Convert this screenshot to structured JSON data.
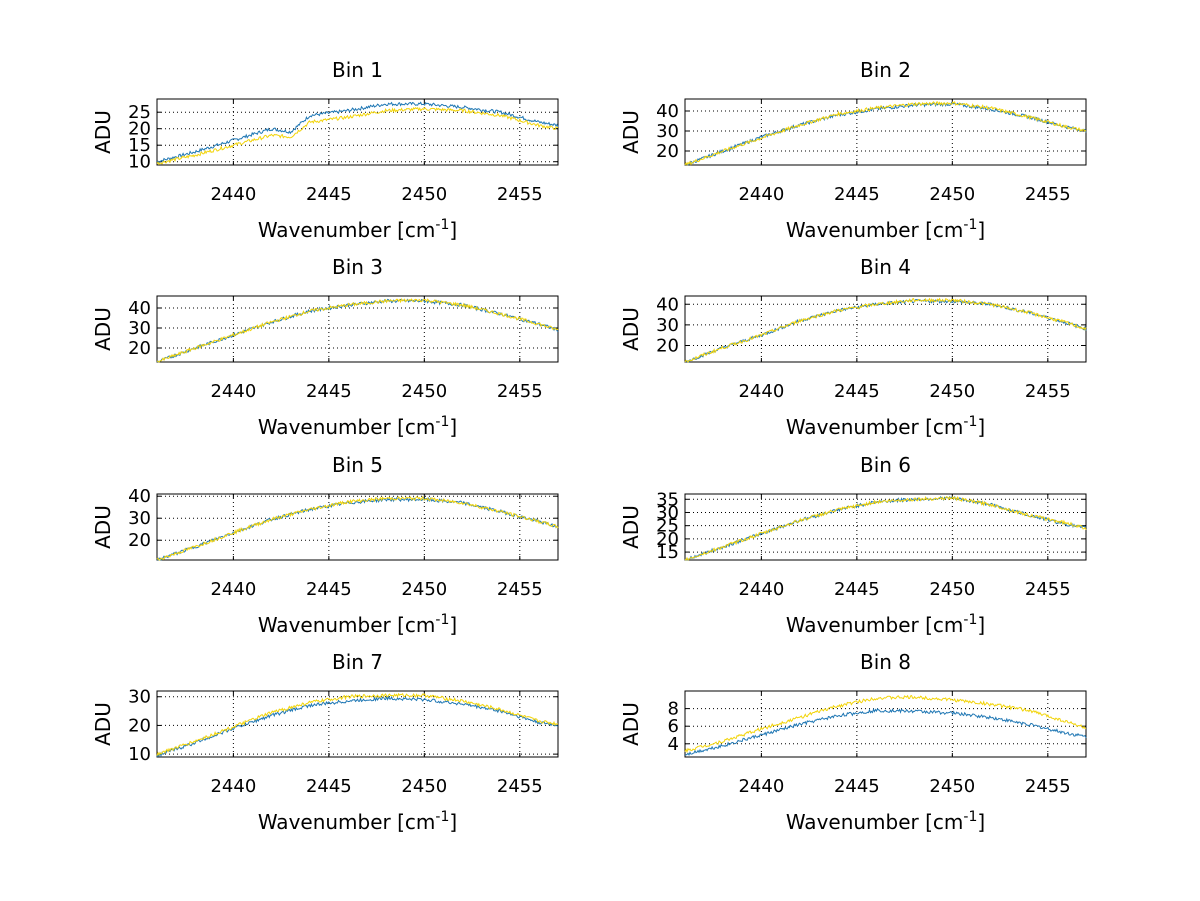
{
  "colors": {
    "series_blue": "#1f77b4",
    "series_yellow": "#f2d40a"
  },
  "chart_data": [
    {
      "type": "line",
      "title": "Bin 1",
      "xlabel": "Wavenumber [cm",
      "xlabel_sup": "-1",
      "xlabel_end": "]",
      "ylabel": "ADU",
      "xlim": [
        2436,
        2457
      ],
      "ylim": [
        9,
        29
      ],
      "xticks": [
        "2440",
        "2445",
        "2450",
        "2455"
      ],
      "yticks": [
        "10",
        "15",
        "20",
        "25"
      ],
      "grid": true,
      "series": [
        {
          "color": "blue",
          "x": [
            2436,
            2438,
            2440,
            2442,
            2443,
            2444,
            2446,
            2448,
            2450,
            2452,
            2454,
            2456,
            2457
          ],
          "y": [
            10,
            13,
            16.5,
            20,
            19,
            24,
            25.5,
            27.5,
            27.5,
            26.5,
            25,
            22,
            21
          ]
        },
        {
          "color": "yellow",
          "x": [
            2436,
            2438,
            2440,
            2442,
            2443,
            2444,
            2446,
            2448,
            2450,
            2452,
            2454,
            2456,
            2457
          ],
          "y": [
            9.5,
            12,
            15,
            18,
            17.5,
            22,
            23.5,
            25.5,
            26,
            25.5,
            24,
            21,
            20
          ]
        }
      ]
    },
    {
      "type": "line",
      "title": "Bin 2",
      "xlabel": "Wavenumber [cm",
      "xlabel_sup": "-1",
      "xlabel_end": "]",
      "ylabel": "ADU",
      "xlim": [
        2436,
        2457
      ],
      "ylim": [
        13,
        46
      ],
      "xticks": [
        "2440",
        "2445",
        "2450",
        "2455"
      ],
      "yticks": [
        "20",
        "30",
        "40"
      ],
      "grid": true,
      "series": [
        {
          "color": "blue",
          "x": [
            2436,
            2438,
            2440,
            2442,
            2444,
            2446,
            2448,
            2450,
            2452,
            2454,
            2456,
            2457
          ],
          "y": [
            13,
            20,
            27,
            33,
            38,
            41,
            43,
            43.5,
            41,
            37,
            32,
            30
          ]
        },
        {
          "color": "yellow",
          "x": [
            2436,
            2438,
            2440,
            2442,
            2444,
            2446,
            2448,
            2450,
            2452,
            2454,
            2456,
            2457
          ],
          "y": [
            13,
            20,
            26.5,
            33,
            38.5,
            41.5,
            43.5,
            44,
            41.5,
            37,
            32,
            30
          ]
        }
      ]
    },
    {
      "type": "line",
      "title": "Bin 3",
      "xlabel": "Wavenumber [cm",
      "xlabel_sup": "-1",
      "xlabel_end": "]",
      "ylabel": "ADU",
      "xlim": [
        2436,
        2457
      ],
      "ylim": [
        13,
        46
      ],
      "xticks": [
        "2440",
        "2445",
        "2450",
        "2455"
      ],
      "yticks": [
        "20",
        "30",
        "40"
      ],
      "grid": true,
      "series": [
        {
          "color": "blue",
          "x": [
            2436,
            2438,
            2440,
            2442,
            2444,
            2446,
            2448,
            2450,
            2452,
            2454,
            2456,
            2457
          ],
          "y": [
            13,
            20,
            26.5,
            33,
            38.5,
            41.5,
            43.5,
            43.5,
            41.5,
            37,
            32,
            29
          ]
        },
        {
          "color": "yellow",
          "x": [
            2436,
            2438,
            2440,
            2442,
            2444,
            2446,
            2448,
            2450,
            2452,
            2454,
            2456,
            2457
          ],
          "y": [
            13,
            20,
            26.5,
            33,
            38.5,
            41.5,
            43.5,
            44,
            41.5,
            37,
            32,
            29
          ]
        }
      ]
    },
    {
      "type": "line",
      "title": "Bin 4",
      "xlabel": "Wavenumber [cm",
      "xlabel_sup": "-1",
      "xlabel_end": "]",
      "ylabel": "ADU",
      "xlim": [
        2436,
        2457
      ],
      "ylim": [
        12,
        44
      ],
      "xticks": [
        "2440",
        "2445",
        "2450",
        "2455"
      ],
      "yticks": [
        "20",
        "30",
        "40"
      ],
      "grid": true,
      "series": [
        {
          "color": "blue",
          "x": [
            2436,
            2438,
            2440,
            2442,
            2444,
            2446,
            2448,
            2450,
            2452,
            2454,
            2456,
            2457
          ],
          "y": [
            12,
            19,
            25,
            32,
            37,
            40,
            41.5,
            41.5,
            40,
            36,
            31,
            28
          ]
        },
        {
          "color": "yellow",
          "x": [
            2436,
            2438,
            2440,
            2442,
            2444,
            2446,
            2448,
            2450,
            2452,
            2454,
            2456,
            2457
          ],
          "y": [
            12,
            19,
            25,
            32,
            37,
            40,
            42,
            42,
            40,
            36,
            31,
            28
          ]
        }
      ]
    },
    {
      "type": "line",
      "title": "Bin 5",
      "xlabel": "Wavenumber [cm",
      "xlabel_sup": "-1",
      "xlabel_end": "]",
      "ylabel": "ADU",
      "xlim": [
        2436,
        2457
      ],
      "ylim": [
        11,
        41
      ],
      "xticks": [
        "2440",
        "2445",
        "2450",
        "2455"
      ],
      "yticks": [
        "20",
        "30",
        "40"
      ],
      "grid": true,
      "series": [
        {
          "color": "blue",
          "x": [
            2436,
            2438,
            2440,
            2442,
            2444,
            2446,
            2448,
            2450,
            2452,
            2454,
            2456,
            2457
          ],
          "y": [
            11,
            17,
            23.5,
            29.5,
            34,
            37,
            38.5,
            38.5,
            37,
            33,
            28.5,
            26
          ]
        },
        {
          "color": "yellow",
          "x": [
            2436,
            2438,
            2440,
            2442,
            2444,
            2446,
            2448,
            2450,
            2452,
            2454,
            2456,
            2457
          ],
          "y": [
            11,
            17,
            23.5,
            29.5,
            34,
            37.5,
            39,
            39,
            37,
            33,
            28.5,
            26
          ]
        }
      ]
    },
    {
      "type": "line",
      "title": "Bin 6",
      "xlabel": "Wavenumber [cm",
      "xlabel_sup": "-1",
      "xlabel_end": "]",
      "ylabel": "ADU",
      "xlim": [
        2436,
        2457
      ],
      "ylim": [
        12,
        37
      ],
      "xticks": [
        "2440",
        "2445",
        "2450",
        "2455"
      ],
      "yticks": [
        "15",
        "20",
        "25",
        "30",
        "35"
      ],
      "grid": true,
      "series": [
        {
          "color": "blue",
          "x": [
            2436,
            2438,
            2440,
            2442,
            2444,
            2446,
            2448,
            2450,
            2452,
            2454,
            2456,
            2457
          ],
          "y": [
            12,
            17,
            22,
            27,
            31,
            34,
            35,
            35.5,
            33,
            29,
            25.5,
            24
          ]
        },
        {
          "color": "yellow",
          "x": [
            2436,
            2438,
            2440,
            2442,
            2444,
            2446,
            2448,
            2450,
            2452,
            2454,
            2456,
            2457
          ],
          "y": [
            12,
            17,
            22,
            27,
            31,
            34,
            35,
            35.5,
            33,
            29,
            26,
            24
          ]
        }
      ]
    },
    {
      "type": "line",
      "title": "Bin 7",
      "xlabel": "Wavenumber [cm",
      "xlabel_sup": "-1",
      "xlabel_end": "]",
      "ylabel": "ADU",
      "xlim": [
        2436,
        2457
      ],
      "ylim": [
        9,
        32
      ],
      "xticks": [
        "2440",
        "2445",
        "2450",
        "2455"
      ],
      "yticks": [
        "10",
        "20",
        "30"
      ],
      "grid": true,
      "series": [
        {
          "color": "blue",
          "x": [
            2436,
            2438,
            2440,
            2442,
            2444,
            2446,
            2448,
            2450,
            2452,
            2454,
            2456,
            2457
          ],
          "y": [
            9.5,
            14,
            19,
            23.5,
            27,
            28.5,
            29.5,
            29,
            27.5,
            25,
            21,
            20
          ]
        },
        {
          "color": "yellow",
          "x": [
            2436,
            2438,
            2440,
            2442,
            2444,
            2446,
            2448,
            2450,
            2452,
            2454,
            2456,
            2457
          ],
          "y": [
            10,
            14.5,
            19.5,
            24.5,
            28,
            30,
            30.5,
            30.5,
            28.5,
            25.5,
            21.5,
            20.5
          ]
        }
      ]
    },
    {
      "type": "line",
      "title": "Bin 8",
      "xlabel": "Wavenumber [cm",
      "xlabel_sup": "-1",
      "xlabel_end": "]",
      "ylabel": "ADU",
      "xlim": [
        2436,
        2457
      ],
      "ylim": [
        2.5,
        10
      ],
      "xticks": [
        "2440",
        "2445",
        "2450",
        "2455"
      ],
      "yticks": [
        "4",
        "6",
        "8"
      ],
      "grid": true,
      "series": [
        {
          "color": "blue",
          "x": [
            2436,
            2438,
            2440,
            2442,
            2444,
            2446,
            2448,
            2450,
            2452,
            2454,
            2456,
            2457
          ],
          "y": [
            2.8,
            3.8,
            5,
            6.2,
            7.2,
            7.8,
            7.7,
            7.5,
            7,
            6.2,
            5.2,
            4.8
          ]
        },
        {
          "color": "yellow",
          "x": [
            2436,
            2438,
            2440,
            2442,
            2444,
            2446,
            2448,
            2450,
            2452,
            2454,
            2456,
            2457
          ],
          "y": [
            3.2,
            4.3,
            5.7,
            7,
            8.3,
            9.2,
            9.3,
            9,
            8.5,
            7.8,
            6.5,
            5.8
          ]
        }
      ]
    }
  ]
}
